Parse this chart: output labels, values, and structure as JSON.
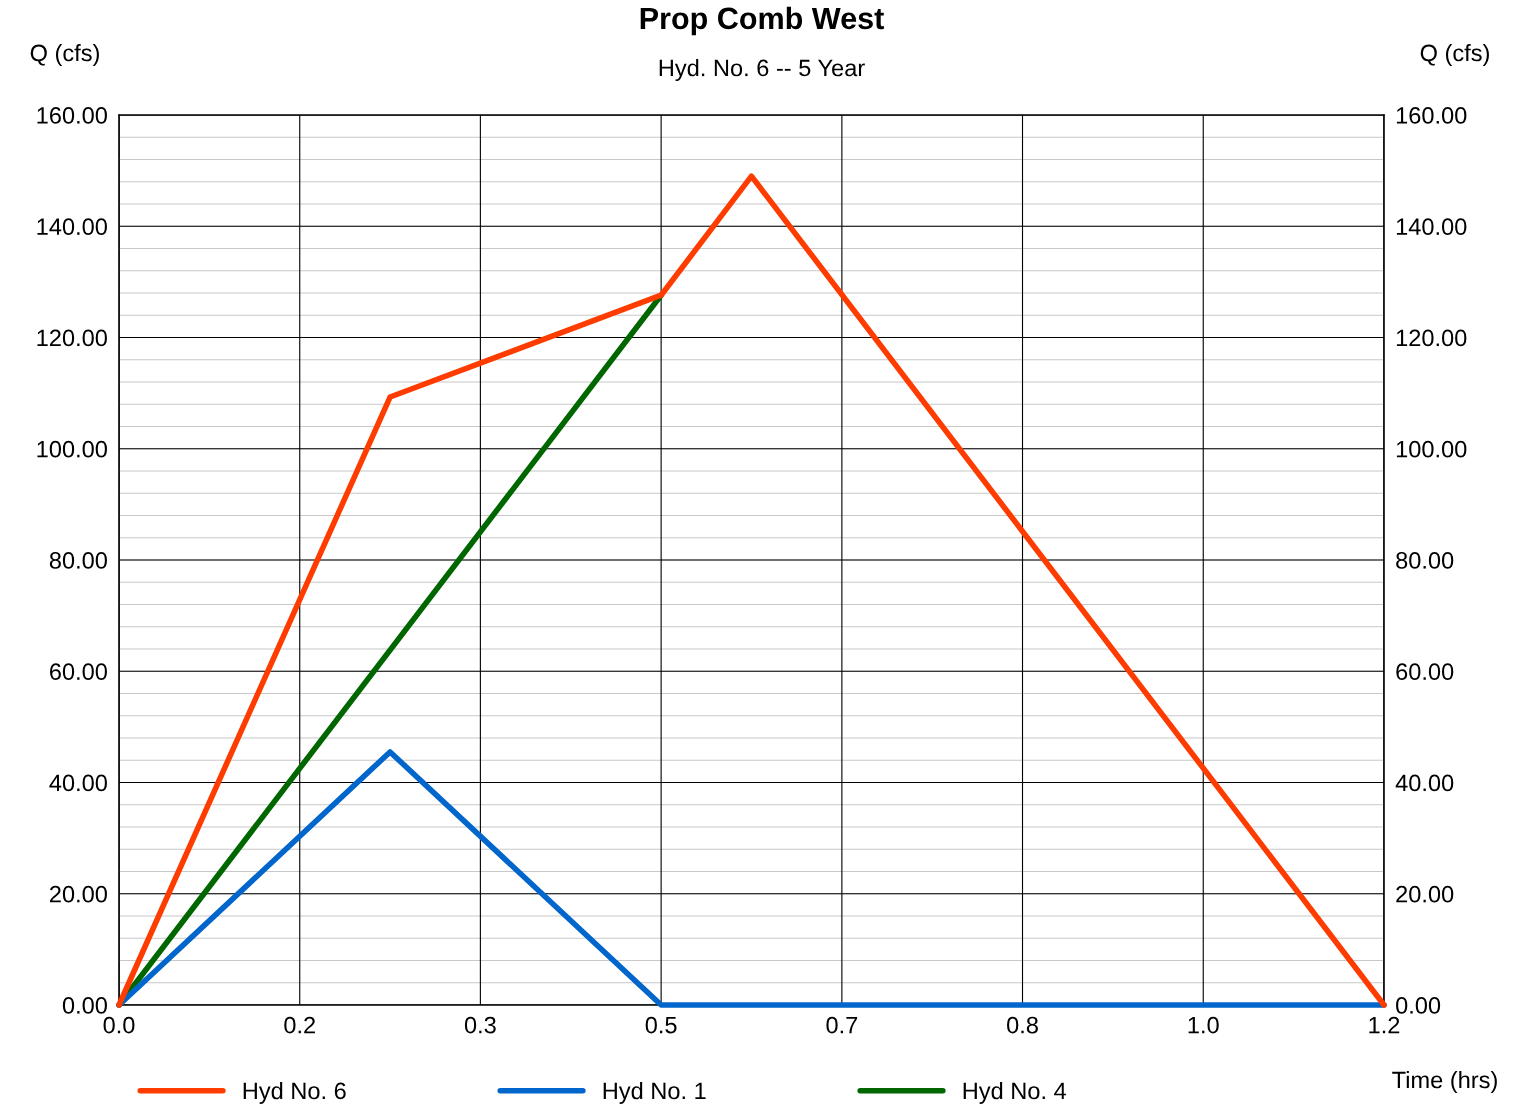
{
  "chart_data": {
    "type": "line",
    "title": "Prop Comb West",
    "subtitle": "Hyd. No. 6 -- 5 Year",
    "xlabel": "Time (hrs)",
    "ylabel": "Q (cfs)",
    "y2label": "Q (cfs)",
    "series": [
      {
        "name": "Hyd No. 6",
        "color": "#ff3c00",
        "x": [
          0,
          0.25,
          0.5,
          0.5833,
          1.1667
        ],
        "values": [
          0,
          109.3,
          127.6,
          149.0,
          0
        ]
      },
      {
        "name": "Hyd No. 1",
        "color": "#0066cc",
        "x": [
          0,
          0.25,
          0.5,
          1.1667
        ],
        "values": [
          0,
          45.5,
          0,
          0
        ]
      },
      {
        "name": "Hyd No. 4",
        "color": "#006600",
        "x": [
          0,
          0.5
        ],
        "values": [
          0,
          127.6
        ]
      }
    ],
    "xlim": [
      0,
      1.1667
    ],
    "xticks": [
      {
        "value": 0,
        "label": "0.0"
      },
      {
        "value": 0.1667,
        "label": "0.2"
      },
      {
        "value": 0.3333,
        "label": "0.3"
      },
      {
        "value": 0.5,
        "label": "0.5"
      },
      {
        "value": 0.6667,
        "label": "0.7"
      },
      {
        "value": 0.8333,
        "label": "0.8"
      },
      {
        "value": 1.0,
        "label": "1.0"
      },
      {
        "value": 1.1667,
        "label": "1.2"
      }
    ],
    "ylim": [
      0,
      160
    ],
    "yticks": [
      {
        "value": 0,
        "label": "0.00"
      },
      {
        "value": 20,
        "label": "20.00"
      },
      {
        "value": 40,
        "label": "40.00"
      },
      {
        "value": 60,
        "label": "60.00"
      },
      {
        "value": 80,
        "label": "80.00"
      },
      {
        "value": 100,
        "label": "100.00"
      },
      {
        "value": 120,
        "label": "120.00"
      },
      {
        "value": 140,
        "label": "140.00"
      },
      {
        "value": 160,
        "label": "160.00"
      }
    ],
    "y2lim": [
      0,
      160
    ],
    "y2ticks": [
      {
        "value": 0,
        "label": "0.00"
      },
      {
        "value": 20,
        "label": "20.00"
      },
      {
        "value": 40,
        "label": "40.00"
      },
      {
        "value": 60,
        "label": "60.00"
      },
      {
        "value": 80,
        "label": "80.00"
      },
      {
        "value": 100,
        "label": "100.00"
      },
      {
        "value": 120,
        "label": "120.00"
      },
      {
        "value": 140,
        "label": "140.00"
      },
      {
        "value": 160,
        "label": "160.00"
      }
    ],
    "grid": true,
    "legend": "bottom",
    "marker": "none",
    "line_style": "solid"
  }
}
